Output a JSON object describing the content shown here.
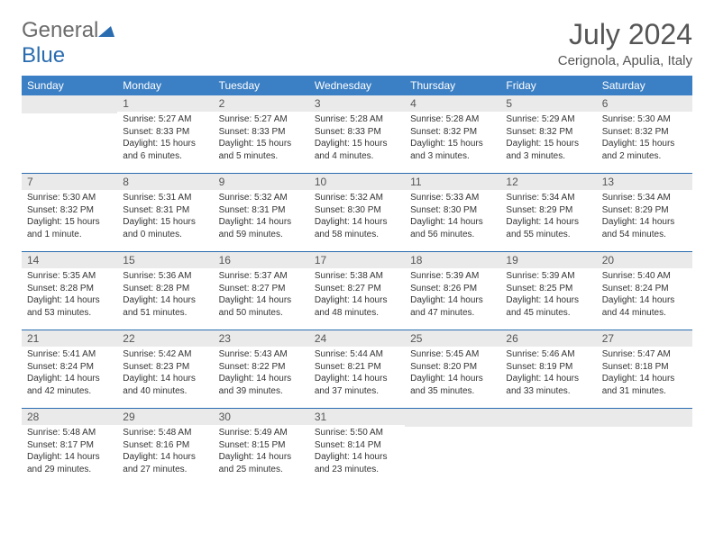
{
  "logo": {
    "text_gray": "General",
    "text_blue": "Blue"
  },
  "title": "July 2024",
  "location": "Cerignola, Apulia, Italy",
  "colors": {
    "header_bg": "#3b7fc4",
    "header_text": "#ffffff",
    "daynum_bg": "#eaeaea",
    "border": "#2a6cb0",
    "title_color": "#555555",
    "body_text": "#333333"
  },
  "weekdays": [
    "Sunday",
    "Monday",
    "Tuesday",
    "Wednesday",
    "Thursday",
    "Friday",
    "Saturday"
  ],
  "weeks": [
    [
      {
        "n": "",
        "sr": "",
        "ss": "",
        "dl": ""
      },
      {
        "n": "1",
        "sr": "Sunrise: 5:27 AM",
        "ss": "Sunset: 8:33 PM",
        "dl": "Daylight: 15 hours and 6 minutes."
      },
      {
        "n": "2",
        "sr": "Sunrise: 5:27 AM",
        "ss": "Sunset: 8:33 PM",
        "dl": "Daylight: 15 hours and 5 minutes."
      },
      {
        "n": "3",
        "sr": "Sunrise: 5:28 AM",
        "ss": "Sunset: 8:33 PM",
        "dl": "Daylight: 15 hours and 4 minutes."
      },
      {
        "n": "4",
        "sr": "Sunrise: 5:28 AM",
        "ss": "Sunset: 8:32 PM",
        "dl": "Daylight: 15 hours and 3 minutes."
      },
      {
        "n": "5",
        "sr": "Sunrise: 5:29 AM",
        "ss": "Sunset: 8:32 PM",
        "dl": "Daylight: 15 hours and 3 minutes."
      },
      {
        "n": "6",
        "sr": "Sunrise: 5:30 AM",
        "ss": "Sunset: 8:32 PM",
        "dl": "Daylight: 15 hours and 2 minutes."
      }
    ],
    [
      {
        "n": "7",
        "sr": "Sunrise: 5:30 AM",
        "ss": "Sunset: 8:32 PM",
        "dl": "Daylight: 15 hours and 1 minute."
      },
      {
        "n": "8",
        "sr": "Sunrise: 5:31 AM",
        "ss": "Sunset: 8:31 PM",
        "dl": "Daylight: 15 hours and 0 minutes."
      },
      {
        "n": "9",
        "sr": "Sunrise: 5:32 AM",
        "ss": "Sunset: 8:31 PM",
        "dl": "Daylight: 14 hours and 59 minutes."
      },
      {
        "n": "10",
        "sr": "Sunrise: 5:32 AM",
        "ss": "Sunset: 8:30 PM",
        "dl": "Daylight: 14 hours and 58 minutes."
      },
      {
        "n": "11",
        "sr": "Sunrise: 5:33 AM",
        "ss": "Sunset: 8:30 PM",
        "dl": "Daylight: 14 hours and 56 minutes."
      },
      {
        "n": "12",
        "sr": "Sunrise: 5:34 AM",
        "ss": "Sunset: 8:29 PM",
        "dl": "Daylight: 14 hours and 55 minutes."
      },
      {
        "n": "13",
        "sr": "Sunrise: 5:34 AM",
        "ss": "Sunset: 8:29 PM",
        "dl": "Daylight: 14 hours and 54 minutes."
      }
    ],
    [
      {
        "n": "14",
        "sr": "Sunrise: 5:35 AM",
        "ss": "Sunset: 8:28 PM",
        "dl": "Daylight: 14 hours and 53 minutes."
      },
      {
        "n": "15",
        "sr": "Sunrise: 5:36 AM",
        "ss": "Sunset: 8:28 PM",
        "dl": "Daylight: 14 hours and 51 minutes."
      },
      {
        "n": "16",
        "sr": "Sunrise: 5:37 AM",
        "ss": "Sunset: 8:27 PM",
        "dl": "Daylight: 14 hours and 50 minutes."
      },
      {
        "n": "17",
        "sr": "Sunrise: 5:38 AM",
        "ss": "Sunset: 8:27 PM",
        "dl": "Daylight: 14 hours and 48 minutes."
      },
      {
        "n": "18",
        "sr": "Sunrise: 5:39 AM",
        "ss": "Sunset: 8:26 PM",
        "dl": "Daylight: 14 hours and 47 minutes."
      },
      {
        "n": "19",
        "sr": "Sunrise: 5:39 AM",
        "ss": "Sunset: 8:25 PM",
        "dl": "Daylight: 14 hours and 45 minutes."
      },
      {
        "n": "20",
        "sr": "Sunrise: 5:40 AM",
        "ss": "Sunset: 8:24 PM",
        "dl": "Daylight: 14 hours and 44 minutes."
      }
    ],
    [
      {
        "n": "21",
        "sr": "Sunrise: 5:41 AM",
        "ss": "Sunset: 8:24 PM",
        "dl": "Daylight: 14 hours and 42 minutes."
      },
      {
        "n": "22",
        "sr": "Sunrise: 5:42 AM",
        "ss": "Sunset: 8:23 PM",
        "dl": "Daylight: 14 hours and 40 minutes."
      },
      {
        "n": "23",
        "sr": "Sunrise: 5:43 AM",
        "ss": "Sunset: 8:22 PM",
        "dl": "Daylight: 14 hours and 39 minutes."
      },
      {
        "n": "24",
        "sr": "Sunrise: 5:44 AM",
        "ss": "Sunset: 8:21 PM",
        "dl": "Daylight: 14 hours and 37 minutes."
      },
      {
        "n": "25",
        "sr": "Sunrise: 5:45 AM",
        "ss": "Sunset: 8:20 PM",
        "dl": "Daylight: 14 hours and 35 minutes."
      },
      {
        "n": "26",
        "sr": "Sunrise: 5:46 AM",
        "ss": "Sunset: 8:19 PM",
        "dl": "Daylight: 14 hours and 33 minutes."
      },
      {
        "n": "27",
        "sr": "Sunrise: 5:47 AM",
        "ss": "Sunset: 8:18 PM",
        "dl": "Daylight: 14 hours and 31 minutes."
      }
    ],
    [
      {
        "n": "28",
        "sr": "Sunrise: 5:48 AM",
        "ss": "Sunset: 8:17 PM",
        "dl": "Daylight: 14 hours and 29 minutes."
      },
      {
        "n": "29",
        "sr": "Sunrise: 5:48 AM",
        "ss": "Sunset: 8:16 PM",
        "dl": "Daylight: 14 hours and 27 minutes."
      },
      {
        "n": "30",
        "sr": "Sunrise: 5:49 AM",
        "ss": "Sunset: 8:15 PM",
        "dl": "Daylight: 14 hours and 25 minutes."
      },
      {
        "n": "31",
        "sr": "Sunrise: 5:50 AM",
        "ss": "Sunset: 8:14 PM",
        "dl": "Daylight: 14 hours and 23 minutes."
      },
      {
        "n": "",
        "sr": "",
        "ss": "",
        "dl": ""
      },
      {
        "n": "",
        "sr": "",
        "ss": "",
        "dl": ""
      },
      {
        "n": "",
        "sr": "",
        "ss": "",
        "dl": ""
      }
    ]
  ]
}
